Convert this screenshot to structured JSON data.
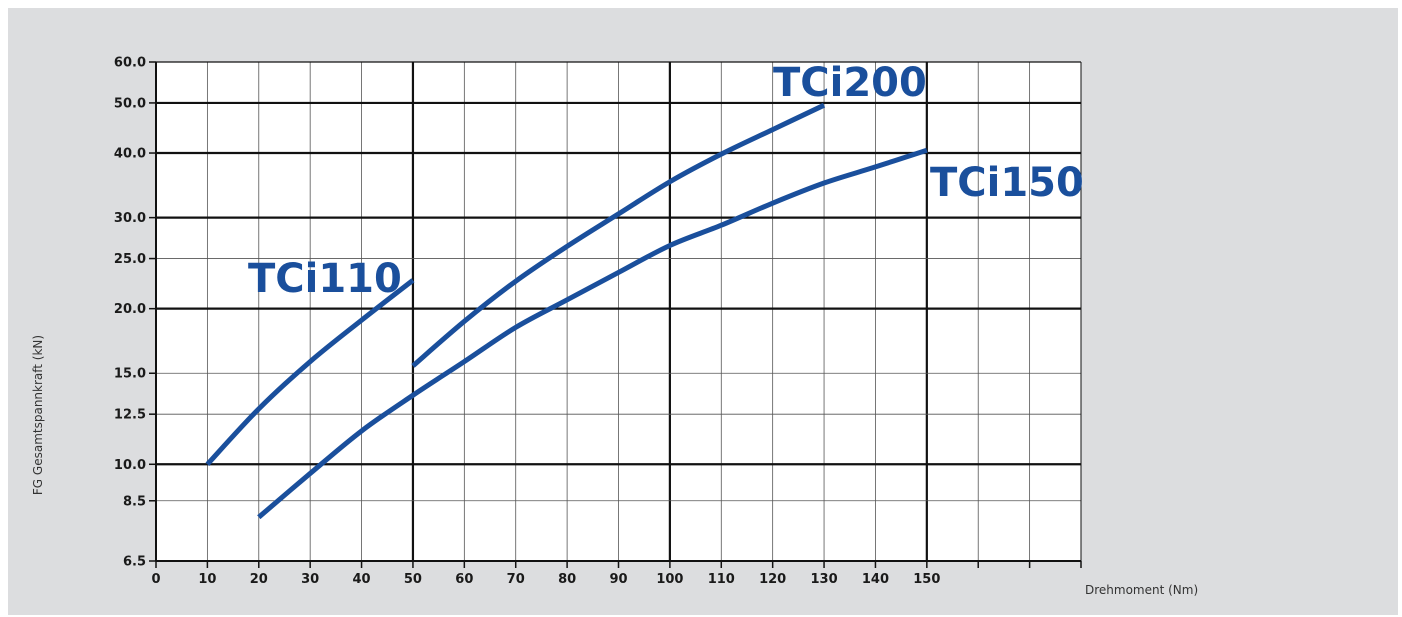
{
  "chart_data": {
    "type": "line",
    "xlabel": "Drehmoment (Nm)",
    "ylabel": "FG Gesamtspannkraft (kN)",
    "y_scale": "log",
    "xlim": [
      0,
      180
    ],
    "ylim": [
      6.5,
      60.0
    ],
    "x_ticks": [
      0,
      10,
      20,
      30,
      40,
      50,
      60,
      70,
      80,
      90,
      100,
      110,
      120,
      130,
      140,
      150
    ],
    "x_tick_labels": [
      "0",
      "10",
      "20",
      "30",
      "40",
      "50",
      "60",
      "70",
      "80",
      "90",
      "100",
      "110",
      "120",
      "130",
      "140",
      "150"
    ],
    "x_major_lines": [
      50,
      100,
      150
    ],
    "y_ticks": [
      6.5,
      8.5,
      10.0,
      12.5,
      15.0,
      20.0,
      25.0,
      30.0,
      40.0,
      50.0,
      60.0
    ],
    "y_tick_labels": [
      "6.5",
      "8.5",
      "10.0",
      "12.5",
      "15.0",
      "20.0",
      "25.0",
      "30.0",
      "40.0",
      "50.0",
      "60.0"
    ],
    "y_major_lines": [
      10.0,
      20.0,
      30.0,
      40.0,
      50.0
    ],
    "grid": true,
    "series_color": "#1a4f9c",
    "series": [
      {
        "name": "TCi110",
        "x": [
          10,
          20,
          30,
          40,
          50
        ],
        "y": [
          10.0,
          12.8,
          15.8,
          19.0,
          22.7
        ]
      },
      {
        "name": "TCi150",
        "x": [
          20,
          30,
          40,
          50,
          60,
          70,
          80,
          90,
          100,
          110,
          120,
          130,
          140,
          150
        ],
        "y": [
          7.9,
          9.6,
          11.6,
          13.6,
          15.8,
          18.4,
          20.8,
          23.5,
          26.5,
          29.0,
          32.0,
          35.0,
          37.6,
          40.5
        ]
      },
      {
        "name": "TCi200",
        "x": [
          50,
          60,
          70,
          80,
          90,
          100,
          110,
          120,
          130
        ],
        "y": [
          15.5,
          18.9,
          22.6,
          26.4,
          30.5,
          35.2,
          39.8,
          44.4,
          49.5
        ]
      }
    ]
  }
}
